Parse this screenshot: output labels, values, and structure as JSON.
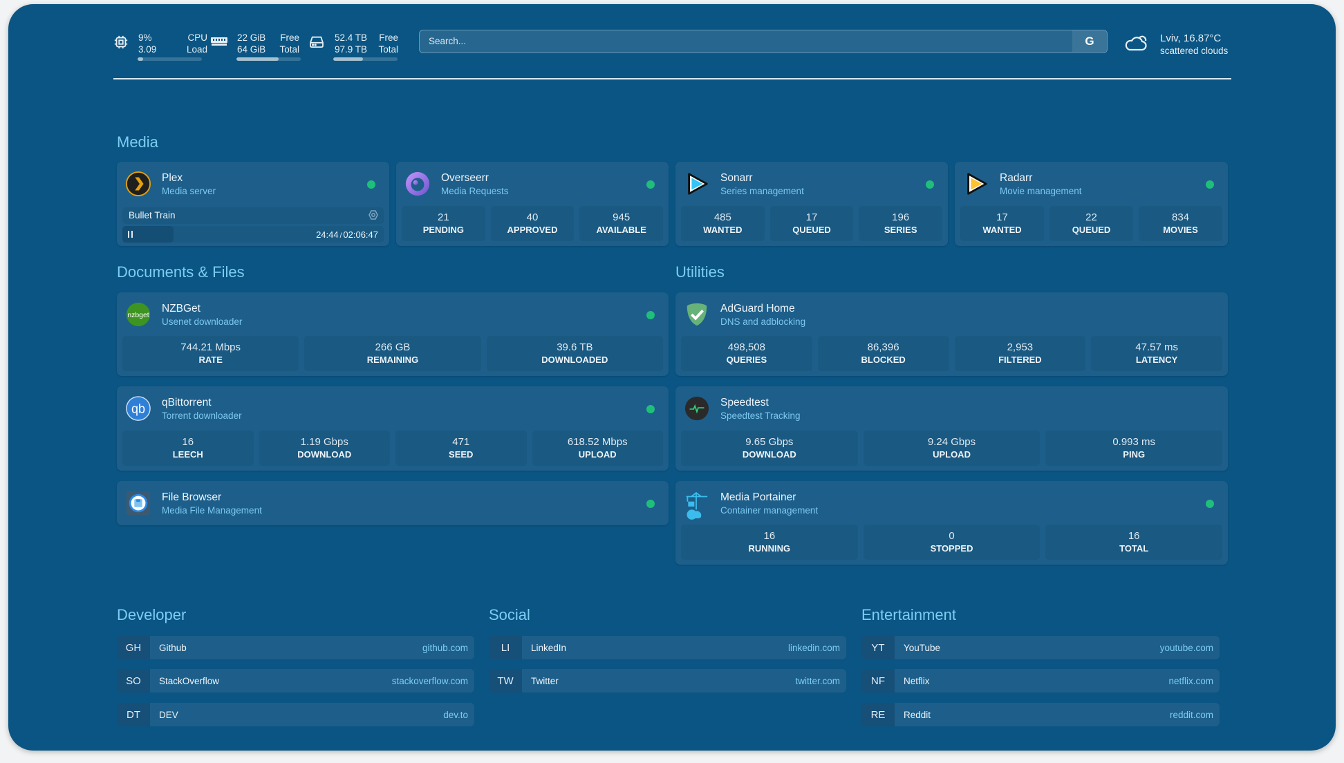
{
  "topbar": {
    "cpu": {
      "icon": "cpu-icon",
      "value1": "9%",
      "value2": "3.09",
      "label1": "CPU",
      "label2": "Load",
      "usage_fraction": 0.09
    },
    "memory": {
      "icon": "memory-icon",
      "value1": "22 GiB",
      "value2": "64 GiB",
      "label1": "Free",
      "label2": "Total",
      "usage_fraction": 0.66
    },
    "disk": {
      "icon": "hard-drive-icon",
      "value1": "52.4 TB",
      "value2": "97.9 TB",
      "label1": "Free",
      "label2": "Total",
      "usage_fraction": 0.46
    },
    "search": {
      "placeholder": "Search...",
      "button_label": "G"
    },
    "weather": {
      "icon": "cloud-icon",
      "location_temp": "Lviv, 16.87°C",
      "condition": "scattered clouds"
    }
  },
  "colors": {
    "background": "#0a5583",
    "card": "#1d5f8a",
    "heading": "#7dcdf3",
    "status_ok": "#1fbf7b"
  },
  "sections": {
    "media": "Media",
    "documents": "Documents & Files",
    "utilities": "Utilities",
    "developer": "Developer",
    "social": "Social",
    "entertainment": "Entertainment"
  },
  "services": [
    {
      "id": "plex",
      "icon": "plex-icon",
      "title": "Plex",
      "subtitle": "Media server",
      "status": "online",
      "now_playing": {
        "title": "Bullet Train",
        "position": "24:44",
        "duration": "02:06:47",
        "separator": "/",
        "progress_fraction": 0.195,
        "state_icon": "pause-icon"
      }
    },
    {
      "id": "overseerr",
      "icon": "overseerr-icon",
      "title": "Overseerr",
      "subtitle": "Media Requests",
      "status": "online",
      "stats": [
        {
          "value": "21",
          "label": "PENDING"
        },
        {
          "value": "40",
          "label": "APPROVED"
        },
        {
          "value": "945",
          "label": "AVAILABLE"
        }
      ]
    },
    {
      "id": "sonarr",
      "icon": "sonarr-icon",
      "title": "Sonarr",
      "subtitle": "Series management",
      "status": "online",
      "stats": [
        {
          "value": "485",
          "label": "WANTED"
        },
        {
          "value": "17",
          "label": "QUEUED"
        },
        {
          "value": "196",
          "label": "SERIES"
        }
      ]
    },
    {
      "id": "radarr",
      "icon": "radarr-icon",
      "title": "Radarr",
      "subtitle": "Movie management",
      "status": "online",
      "stats": [
        {
          "value": "17",
          "label": "WANTED"
        },
        {
          "value": "22",
          "label": "QUEUED"
        },
        {
          "value": "834",
          "label": "MOVIES"
        }
      ]
    },
    {
      "id": "nzbget",
      "icon": "nzbget-icon",
      "title": "NZBGet",
      "subtitle": "Usenet downloader",
      "status": "online",
      "stats": [
        {
          "value": "744.21 Mbps",
          "label": "RATE"
        },
        {
          "value": "266 GB",
          "label": "REMAINING"
        },
        {
          "value": "39.6 TB",
          "label": "DOWNLOADED"
        }
      ]
    },
    {
      "id": "adguard",
      "icon": "adguard-shield-icon",
      "title": "AdGuard Home",
      "subtitle": "DNS and adblocking",
      "status": "",
      "stats": [
        {
          "value": "498,508",
          "label": "QUERIES"
        },
        {
          "value": "86,396",
          "label": "BLOCKED"
        },
        {
          "value": "2,953",
          "label": "FILTERED"
        },
        {
          "value": "47.57 ms",
          "label": "LATENCY"
        }
      ]
    },
    {
      "id": "qbittorrent",
      "icon": "qbittorrent-icon",
      "title": "qBittorrent",
      "subtitle": "Torrent downloader",
      "status": "online",
      "stats": [
        {
          "value": "16",
          "label": "LEECH"
        },
        {
          "value": "1.19 Gbps",
          "label": "DOWNLOAD"
        },
        {
          "value": "471",
          "label": "SEED"
        },
        {
          "value": "618.52 Mbps",
          "label": "UPLOAD"
        }
      ]
    },
    {
      "id": "speedtest",
      "icon": "speedtest-pulse-icon",
      "title": "Speedtest",
      "subtitle": "Speedtest Tracking",
      "status": "",
      "stats": [
        {
          "value": "9.65 Gbps",
          "label": "DOWNLOAD"
        },
        {
          "value": "9.24 Gbps",
          "label": "UPLOAD"
        },
        {
          "value": "0.993 ms",
          "label": "PING"
        }
      ]
    },
    {
      "id": "filebrowser",
      "icon": "file-browser-icon",
      "title": "File Browser",
      "subtitle": "Media File Management",
      "status": "online"
    },
    {
      "id": "portainer",
      "icon": "portainer-crane-icon",
      "title": "Media Portainer",
      "subtitle": "Container management",
      "status": "online",
      "stats": [
        {
          "value": "16",
          "label": "RUNNING"
        },
        {
          "value": "0",
          "label": "STOPPED"
        },
        {
          "value": "16",
          "label": "TOTAL"
        }
      ]
    }
  ],
  "bookmarks": {
    "developer": [
      {
        "abbr": "GH",
        "name": "Github",
        "url": "github.com"
      },
      {
        "abbr": "SO",
        "name": "StackOverflow",
        "url": "stackoverflow.com"
      },
      {
        "abbr": "DT",
        "name": "DEV",
        "url": "dev.to"
      }
    ],
    "social": [
      {
        "abbr": "LI",
        "name": "LinkedIn",
        "url": "linkedin.com"
      },
      {
        "abbr": "TW",
        "name": "Twitter",
        "url": "twitter.com"
      }
    ],
    "entertainment": [
      {
        "abbr": "YT",
        "name": "YouTube",
        "url": "youtube.com"
      },
      {
        "abbr": "NF",
        "name": "Netflix",
        "url": "netflix.com"
      },
      {
        "abbr": "RE",
        "name": "Reddit",
        "url": "reddit.com"
      }
    ]
  }
}
